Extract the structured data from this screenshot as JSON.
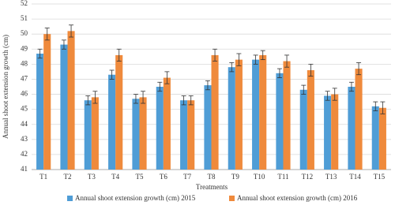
{
  "chart_data": {
    "type": "bar",
    "y_label": "Annual shoot extension growth (cm)",
    "x_label": "Treatments",
    "categories": [
      "T1",
      "T2",
      "T3",
      "T4",
      "T5",
      "T6",
      "T7",
      "T8",
      "T9",
      "T10",
      "T11",
      "T12",
      "T13",
      "T14",
      "T15"
    ],
    "series": [
      {
        "name": "Annual shoot extension growth (cm) 2015",
        "color": "#4f9dd6",
        "values": [
          48.7,
          49.3,
          45.6,
          47.3,
          45.7,
          46.5,
          45.6,
          46.6,
          47.8,
          48.3,
          47.4,
          46.3,
          45.9,
          46.5,
          45.2
        ],
        "errors": [
          0.3,
          0.3,
          0.3,
          0.3,
          0.3,
          0.3,
          0.3,
          0.3,
          0.3,
          0.3,
          0.3,
          0.3,
          0.3,
          0.3,
          0.3
        ]
      },
      {
        "name": "Annual shoot extension growth (cm) 2016",
        "color": "#ef8a3c",
        "values": [
          50.0,
          50.2,
          45.8,
          48.6,
          45.8,
          47.1,
          45.6,
          48.6,
          48.3,
          48.6,
          48.2,
          47.6,
          46.0,
          47.7,
          45.1
        ],
        "errors": [
          0.4,
          0.4,
          0.4,
          0.4,
          0.4,
          0.4,
          0.3,
          0.4,
          0.4,
          0.3,
          0.4,
          0.4,
          0.4,
          0.4,
          0.4
        ]
      }
    ],
    "ylim": [
      41,
      52
    ],
    "yticks": [
      41,
      42,
      43,
      44,
      45,
      46,
      47,
      48,
      49,
      50,
      51,
      52
    ],
    "grid": true
  }
}
